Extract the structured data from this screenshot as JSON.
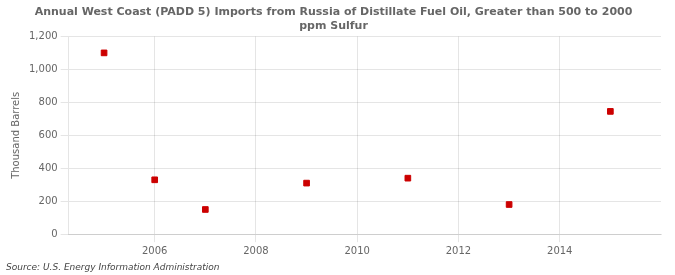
{
  "chart_data": {
    "type": "scatter",
    "title": "Annual West Coast (PADD 5) Imports from Russia of Distillate Fuel Oil, Greater than 500 to 2000\nppm Sulfur",
    "y_label": "Thousand Barrels",
    "annotation": "Source: U.S. Energy Information Administration",
    "x": [
      2005,
      2006,
      2007,
      2009,
      2011,
      2013,
      2015
    ],
    "values": [
      1100,
      330,
      150,
      310,
      340,
      180,
      745
    ],
    "color": "#cc0000",
    "marker": "square",
    "xlim": [
      2004.3,
      2016
    ],
    "xticks": [
      2006,
      2008,
      2010,
      2012,
      2014
    ],
    "ylim": [
      0,
      1200
    ],
    "yticks": [
      0,
      200,
      400,
      600,
      800,
      {
        "value": 1000,
        "label": "1,000"
      },
      {
        "value": 1200,
        "label": "1,200"
      }
    ],
    "grid": true
  }
}
